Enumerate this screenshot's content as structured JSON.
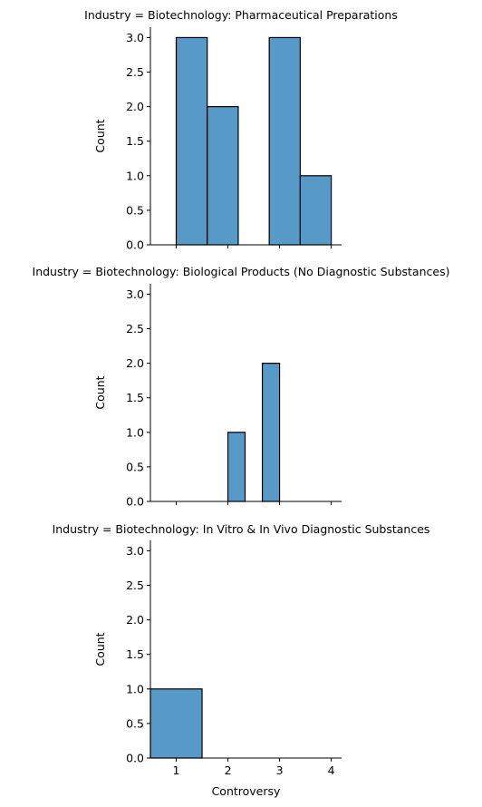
{
  "chart_data": [
    {
      "type": "bar",
      "title": "Industry = Biotechnology: Pharmaceutical Preparations",
      "xlabel": "",
      "ylabel": "Count",
      "bins": [
        {
          "x0": 1.0,
          "x1": 1.6,
          "count": 3
        },
        {
          "x0": 1.6,
          "x1": 2.2,
          "count": 2
        },
        {
          "x0": 2.8,
          "x1": 3.4,
          "count": 3
        },
        {
          "x0": 3.4,
          "x1": 4.0,
          "count": 1
        }
      ],
      "xlim": [
        0.5,
        4.2
      ],
      "ylim": [
        0,
        3.15
      ],
      "xticks": [
        1,
        2,
        3,
        4
      ],
      "xticklabels": [],
      "yticks": [
        0.0,
        0.5,
        1.0,
        1.5,
        2.0,
        2.5,
        3.0
      ],
      "yticklabels": [
        "0.0",
        "0.5",
        "1.0",
        "1.5",
        "2.0",
        "2.5",
        "3.0"
      ],
      "bar_color": "#5799c7"
    },
    {
      "type": "bar",
      "title": "Industry = Biotechnology: Biological Products (No Diagnostic Substances)",
      "xlabel": "",
      "ylabel": "Count",
      "bins": [
        {
          "x0": 2.0,
          "x1": 2.333,
          "count": 1
        },
        {
          "x0": 2.667,
          "x1": 3.0,
          "count": 2
        }
      ],
      "xlim": [
        0.5,
        4.2
      ],
      "ylim": [
        0,
        3.15
      ],
      "xticks": [
        1,
        2,
        3,
        4
      ],
      "xticklabels": [],
      "yticks": [
        0.0,
        0.5,
        1.0,
        1.5,
        2.0,
        2.5,
        3.0
      ],
      "yticklabels": [
        "0.0",
        "0.5",
        "1.0",
        "1.5",
        "2.0",
        "2.5",
        "3.0"
      ],
      "bar_color": "#5799c7"
    },
    {
      "type": "bar",
      "title": "Industry = Biotechnology: In Vitro & In Vivo Diagnostic Substances",
      "xlabel": "Controversy",
      "ylabel": "Count",
      "bins": [
        {
          "x0": 0.5,
          "x1": 1.5,
          "count": 1
        }
      ],
      "xlim": [
        0.5,
        4.2
      ],
      "ylim": [
        0,
        3.15
      ],
      "xticks": [
        1,
        2,
        3,
        4
      ],
      "xticklabels": [
        "1",
        "2",
        "3",
        "4"
      ],
      "yticks": [
        0.0,
        0.5,
        1.0,
        1.5,
        2.0,
        2.5,
        3.0
      ],
      "yticklabels": [
        "0.0",
        "0.5",
        "1.0",
        "1.5",
        "2.0",
        "2.5",
        "3.0"
      ],
      "bar_color": "#5799c7"
    }
  ]
}
